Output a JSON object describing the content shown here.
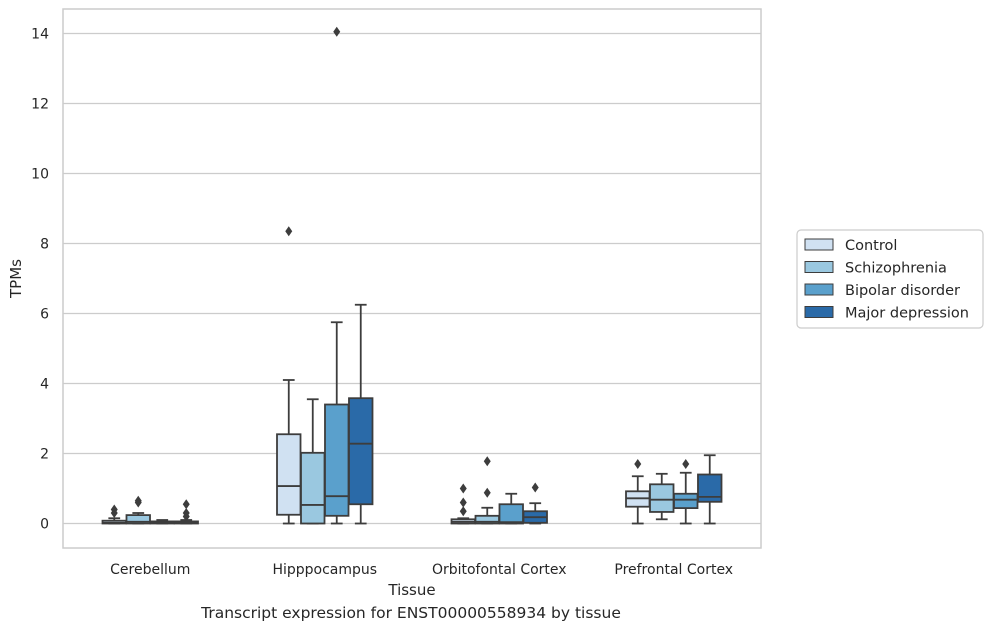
{
  "caption": "Transcript expression for ENST00000558934 by tissue",
  "chart_data": {
    "type": "box",
    "xlabel": "Tissue",
    "ylabel": "TPMs",
    "ylim": [
      -0.7,
      14.7
    ],
    "yticks": [
      0,
      2,
      4,
      6,
      8,
      10,
      12,
      14
    ],
    "grid": "horizontal",
    "legend_position": "right",
    "categories": [
      "Cerebellum",
      "Hipppocampus",
      "Orbitofontal Cortex",
      "Prefrontal Cortex"
    ],
    "series": [
      {
        "name": "Control",
        "color": "#d0e1f2",
        "boxes": [
          {
            "whislo": 0,
            "q1": 0,
            "med": 0.02,
            "q3": 0.08,
            "whishi": 0.15,
            "fliers": [
              0.3,
              0.4
            ]
          },
          {
            "whislo": 0,
            "q1": 0.25,
            "med": 1.07,
            "q3": 2.55,
            "whishi": 4.1,
            "fliers": [
              8.35
            ]
          },
          {
            "whislo": 0,
            "q1": 0,
            "med": 0.05,
            "q3": 0.12,
            "whishi": 0.15,
            "fliers": [
              0.35,
              0.6,
              1.0
            ]
          },
          {
            "whislo": 0,
            "q1": 0.48,
            "med": 0.72,
            "q3": 0.92,
            "whishi": 1.35,
            "fliers": [
              1.7
            ]
          }
        ]
      },
      {
        "name": "Schizophrenia",
        "color": "#9ac8e0",
        "boxes": [
          {
            "whislo": 0,
            "q1": 0,
            "med": 0.05,
            "q3": 0.24,
            "whishi": 0.3,
            "fliers": [
              0.6,
              0.65
            ]
          },
          {
            "whislo": 0,
            "q1": 0,
            "med": 0.53,
            "q3": 2.02,
            "whishi": 3.55,
            "fliers": []
          },
          {
            "whislo": 0,
            "q1": 0,
            "med": 0.05,
            "q3": 0.22,
            "whishi": 0.45,
            "fliers": [
              0.88,
              1.78
            ]
          },
          {
            "whislo": 0.12,
            "q1": 0.33,
            "med": 0.68,
            "q3": 1.12,
            "whishi": 1.42,
            "fliers": []
          }
        ]
      },
      {
        "name": "Bipolar disorder",
        "color": "#5aa0cc",
        "boxes": [
          {
            "whislo": 0,
            "q1": 0,
            "med": 0.02,
            "q3": 0.06,
            "whishi": 0.1,
            "fliers": []
          },
          {
            "whislo": 0,
            "q1": 0.22,
            "med": 0.78,
            "q3": 3.4,
            "whishi": 5.75,
            "fliers": [
              14.05
            ]
          },
          {
            "whislo": 0,
            "q1": 0,
            "med": 0.04,
            "q3": 0.55,
            "whishi": 0.85,
            "fliers": []
          },
          {
            "whislo": 0,
            "q1": 0.44,
            "med": 0.68,
            "q3": 0.85,
            "whishi": 1.45,
            "fliers": [
              1.7
            ]
          }
        ]
      },
      {
        "name": "Major depression",
        "color": "#2a6aa8",
        "boxes": [
          {
            "whislo": 0,
            "q1": 0,
            "med": 0.02,
            "q3": 0.06,
            "whishi": 0.1,
            "fliers": [
              0.2,
              0.3,
              0.55
            ]
          },
          {
            "whislo": 0,
            "q1": 0.55,
            "med": 2.28,
            "q3": 3.58,
            "whishi": 6.25,
            "fliers": []
          },
          {
            "whislo": 0,
            "q1": 0.02,
            "med": 0.18,
            "q3": 0.35,
            "whishi": 0.58,
            "fliers": [
              1.03
            ]
          },
          {
            "whislo": 0,
            "q1": 0.62,
            "med": 0.76,
            "q3": 1.4,
            "whishi": 1.95,
            "fliers": []
          }
        ]
      }
    ]
  }
}
